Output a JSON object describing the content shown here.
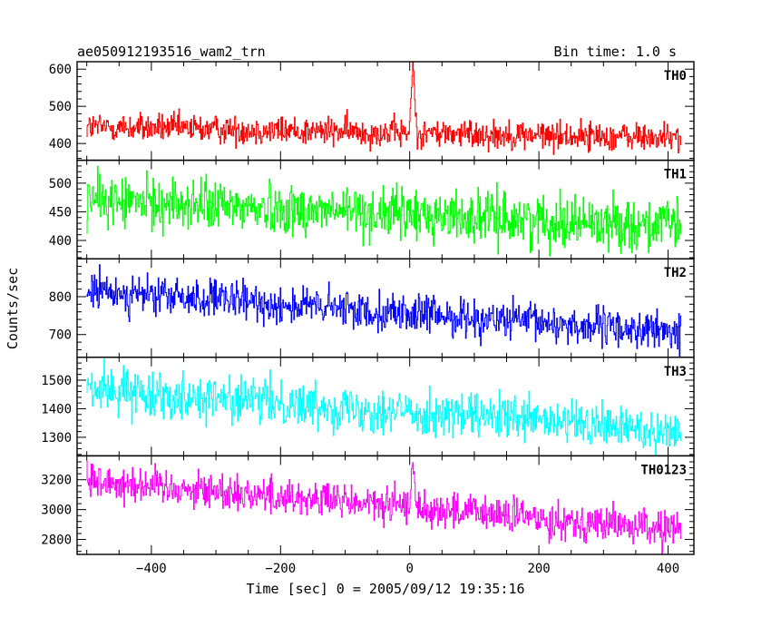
{
  "chart_data": {
    "type": "line",
    "title": "ae050912193516_wam2_trn",
    "bin_label": "Bin time: 1.0 s",
    "xlabel": "Time [sec] 0 = 2005/09/12 19:35:16",
    "ylabel": "Counts/sec",
    "xlim": [
      -515,
      440
    ],
    "xticks": [
      -400,
      -200,
      0,
      200,
      400
    ],
    "x_data_range": [
      -500,
      420
    ],
    "x_step": 1,
    "panels": [
      {
        "name": "TH0",
        "color": "#ff0000",
        "ylim": [
          355,
          620
        ],
        "yticks": [
          400,
          500,
          600
        ],
        "mean_start": 445,
        "mean_end": 415,
        "noise_amp": 35,
        "spike": {
          "x": [
            0,
            10
          ],
          "peak": 620
        }
      },
      {
        "name": "TH1",
        "color": "#00ff00",
        "ylim": [
          368,
          540
        ],
        "yticks": [
          400,
          450,
          500
        ],
        "mean_start": 470,
        "mean_end": 425,
        "noise_amp": 40
      },
      {
        "name": "TH2",
        "color": "#0000ff",
        "ylim": [
          640,
          900
        ],
        "yticks": [
          700,
          800
        ],
        "mean_start": 815,
        "mean_end": 705,
        "noise_amp": 45
      },
      {
        "name": "TH3",
        "color": "#00ffff",
        "ylim": [
          1235,
          1580
        ],
        "yticks": [
          1300,
          1400,
          1500
        ],
        "mean_start": 1470,
        "mean_end": 1320,
        "noise_amp": 70
      },
      {
        "name": "TH0123",
        "color": "#ff00ff",
        "ylim": [
          2700,
          3360
        ],
        "yticks": [
          2800,
          3000,
          3200
        ],
        "mean_start": 3200,
        "mean_end": 2860,
        "noise_amp": 110,
        "spike": {
          "x": [
            0,
            10
          ],
          "peak": 3330
        }
      }
    ],
    "grid": false,
    "legend": "none"
  }
}
